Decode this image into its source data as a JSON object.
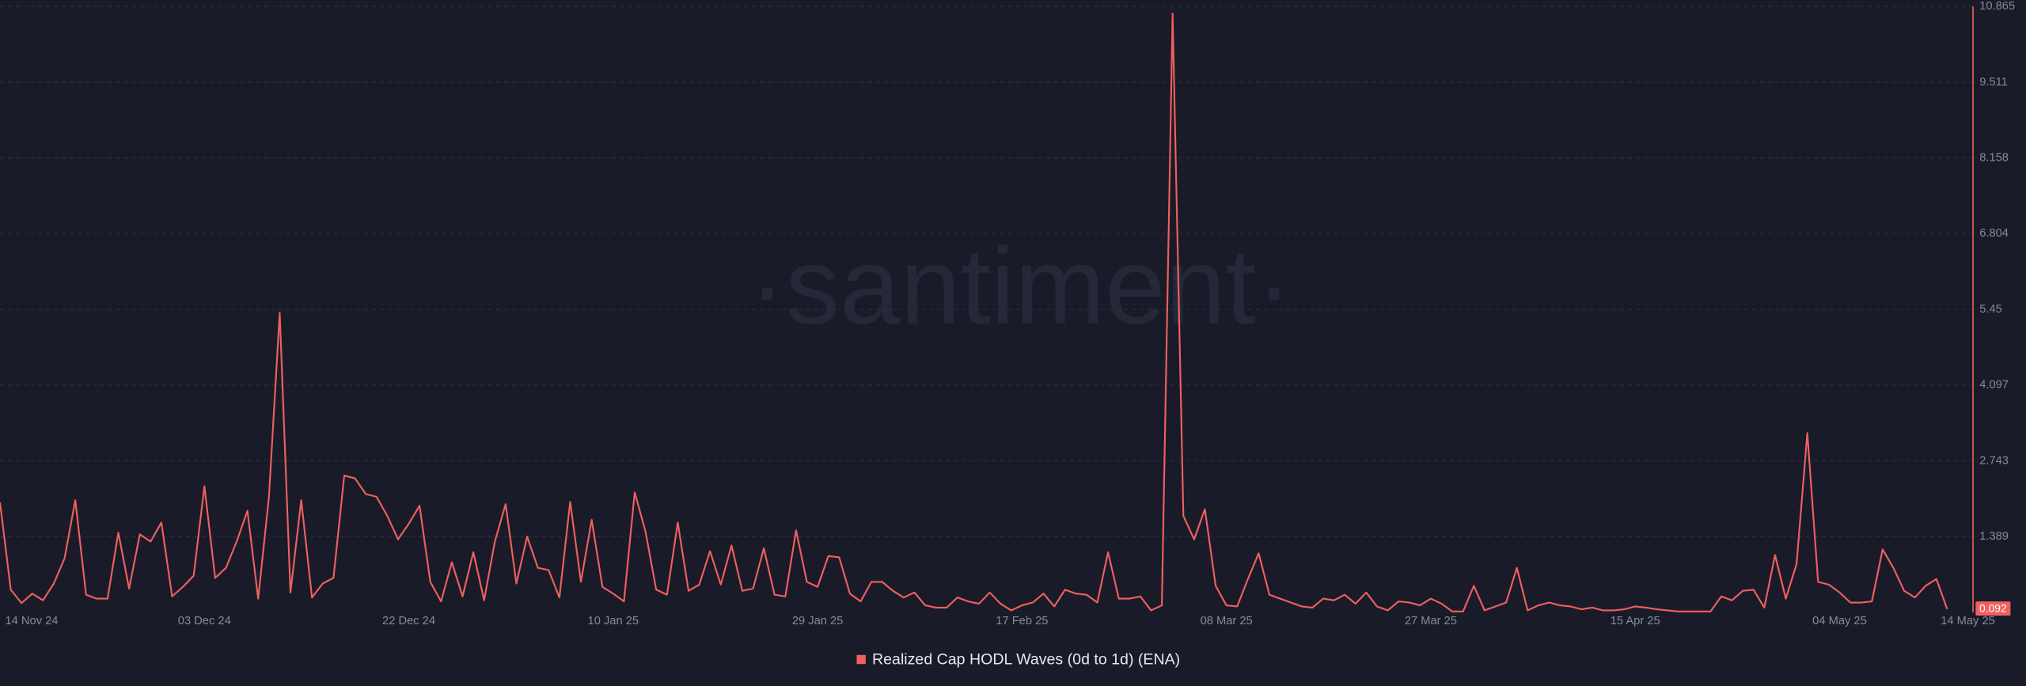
{
  "chart_data": {
    "type": "line",
    "watermark": "·santiment·",
    "categories": [
      "14 Nov 24",
      null,
      null,
      null,
      null,
      null,
      null,
      null,
      null,
      null,
      null,
      null,
      null,
      null,
      null,
      null,
      null,
      null,
      null,
      "03 Dec 24",
      null,
      null,
      null,
      null,
      null,
      null,
      null,
      null,
      null,
      null,
      null,
      null,
      null,
      null,
      null,
      null,
      null,
      null,
      "22 Dec 24",
      null,
      null,
      null,
      null,
      null,
      null,
      null,
      null,
      null,
      null,
      null,
      null,
      null,
      null,
      null,
      null,
      null,
      null,
      "10 Jan 25",
      null,
      null,
      null,
      null,
      null,
      null,
      null,
      null,
      null,
      null,
      null,
      null,
      null,
      null,
      null,
      null,
      null,
      null,
      "29 Jan 25",
      null,
      null,
      null,
      null,
      null,
      null,
      null,
      null,
      null,
      null,
      null,
      null,
      null,
      null,
      null,
      null,
      null,
      null,
      "17 Feb 25",
      null,
      null,
      null,
      null,
      null,
      null,
      null,
      null,
      null,
      null,
      null,
      null,
      null,
      null,
      null,
      null,
      null,
      null,
      "08 Mar 25",
      null,
      null,
      null,
      null,
      null,
      null,
      null,
      null,
      null,
      null,
      null,
      null,
      null,
      null,
      null,
      null,
      null,
      null,
      "27 Mar 25",
      null,
      null,
      null,
      null,
      null,
      null,
      null,
      null,
      null,
      null,
      null,
      null,
      null,
      null,
      null,
      null,
      null,
      null,
      "15 Apr 25",
      null,
      null,
      null,
      null,
      null,
      null,
      null,
      null,
      null,
      null,
      null,
      null,
      null,
      null,
      null,
      null,
      null,
      null,
      "04 May 25",
      null,
      null,
      null,
      null,
      null,
      null,
      null,
      null,
      null,
      "14 May 25"
    ],
    "series": [
      {
        "name": "Realized Cap HODL Waves (0d to 1d) (ENA)",
        "color": "#f0605f",
        "values": [
          2.0,
          0.44,
          0.2,
          0.37,
          0.25,
          0.55,
          1.0,
          2.04,
          0.35,
          0.28,
          0.28,
          1.46,
          0.46,
          1.43,
          1.3,
          1.64,
          0.32,
          0.49,
          0.69,
          2.29,
          0.65,
          0.83,
          1.3,
          1.85,
          0.28,
          2.1,
          5.39,
          0.39,
          2.04,
          0.3,
          0.55,
          0.65,
          2.48,
          2.43,
          2.15,
          2.1,
          1.76,
          1.34,
          1.62,
          1.94,
          0.58,
          0.23,
          0.93,
          0.32,
          1.11,
          0.25,
          1.3,
          1.97,
          0.55,
          1.39,
          0.83,
          0.79,
          0.3,
          2.01,
          0.58,
          1.69,
          0.49,
          0.37,
          0.23,
          2.18,
          1.48,
          0.44,
          0.35,
          1.64,
          0.42,
          0.53,
          1.13,
          0.53,
          1.23,
          0.42,
          0.46,
          1.18,
          0.35,
          0.32,
          1.5,
          0.58,
          0.49,
          1.04,
          1.02,
          0.37,
          0.23,
          0.58,
          0.58,
          0.42,
          0.3,
          0.39,
          0.16,
          0.12,
          0.12,
          0.3,
          0.23,
          0.19,
          0.39,
          0.19,
          0.07,
          0.16,
          0.21,
          0.37,
          0.14,
          0.44,
          0.37,
          0.35,
          0.21,
          1.11,
          0.28,
          0.28,
          0.32,
          0.07,
          0.16,
          10.74,
          1.76,
          1.34,
          1.88,
          0.51,
          0.16,
          0.14,
          0.63,
          1.09,
          0.35,
          0.28,
          0.21,
          0.14,
          0.12,
          0.28,
          0.25,
          0.35,
          0.19,
          0.39,
          0.14,
          0.07,
          0.23,
          0.21,
          0.16,
          0.28,
          0.19,
          0.05,
          0.05,
          0.51,
          0.07,
          0.14,
          0.21,
          0.83,
          0.07,
          0.16,
          0.21,
          0.16,
          0.14,
          0.09,
          0.12,
          0.07,
          0.07,
          0.09,
          0.14,
          0.12,
          0.09,
          0.07,
          0.05,
          0.05,
          0.05,
          0.05,
          0.32,
          0.25,
          0.42,
          0.44,
          0.12,
          1.06,
          0.28,
          0.9,
          3.24,
          0.58,
          0.53,
          0.39,
          0.21,
          0.21,
          0.23,
          1.16,
          0.83,
          0.42,
          0.3,
          0.51,
          0.63,
          0.092
        ]
      }
    ],
    "ylim": [
      0.035,
      10.865
    ],
    "yticks": [
      1.389,
      2.743,
      4.097,
      5.45,
      6.804,
      8.158,
      9.511,
      10.865
    ],
    "grid": true,
    "legend": "bottom"
  }
}
